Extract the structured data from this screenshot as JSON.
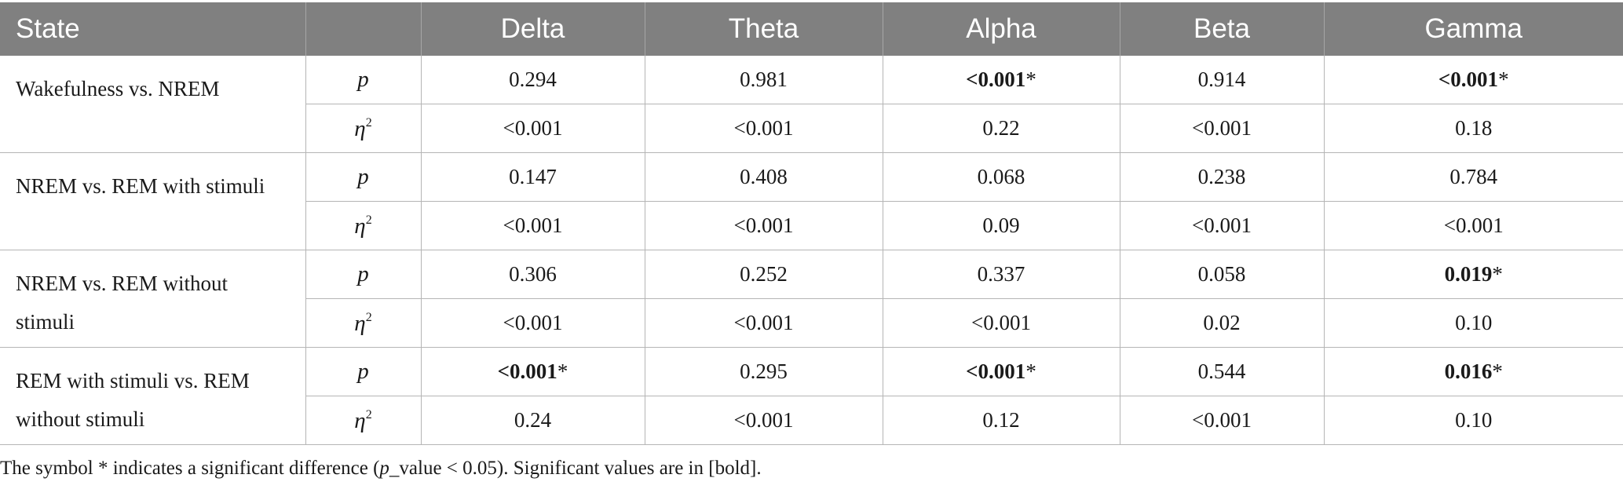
{
  "table": {
    "headers": [
      "State",
      "",
      "Delta",
      "Theta",
      "Alpha",
      "Beta",
      "Gamma"
    ],
    "groups": [
      {
        "state": "Wakefulness vs. NREM",
        "rows": [
          {
            "stat": "p",
            "sup": "",
            "values": [
              "0.294",
              "0.981",
              "<0.001",
              "0.914",
              "<0.001"
            ],
            "significant": [
              false,
              false,
              true,
              false,
              true
            ]
          },
          {
            "stat": "η",
            "sup": "2",
            "values": [
              "<0.001",
              "<0.001",
              "0.22",
              "<0.001",
              "0.18"
            ],
            "significant": [
              false,
              false,
              false,
              false,
              false
            ]
          }
        ]
      },
      {
        "state": "NREM vs. REM with stimuli",
        "rows": [
          {
            "stat": "p",
            "sup": "",
            "values": [
              "0.147",
              "0.408",
              "0.068",
              "0.238",
              "0.784"
            ],
            "significant": [
              false,
              false,
              false,
              false,
              false
            ]
          },
          {
            "stat": "η",
            "sup": "2",
            "values": [
              "<0.001",
              "<0.001",
              "0.09",
              "<0.001",
              "<0.001"
            ],
            "significant": [
              false,
              false,
              false,
              false,
              false
            ]
          }
        ]
      },
      {
        "state": "NREM vs. REM without stimuli",
        "rows": [
          {
            "stat": "p",
            "sup": "",
            "values": [
              "0.306",
              "0.252",
              "0.337",
              "0.058",
              "0.019"
            ],
            "significant": [
              false,
              false,
              false,
              false,
              true
            ]
          },
          {
            "stat": "η",
            "sup": "2",
            "values": [
              "<0.001",
              "<0.001",
              "<0.001",
              "0.02",
              "0.10"
            ],
            "significant": [
              false,
              false,
              false,
              false,
              false
            ]
          }
        ]
      },
      {
        "state": "REM with stimuli vs. REM without stimuli",
        "rows": [
          {
            "stat": "p",
            "sup": "",
            "values": [
              "<0.001",
              "0.295",
              "<0.001",
              "0.544",
              "0.016"
            ],
            "significant": [
              true,
              false,
              true,
              false,
              true
            ]
          },
          {
            "stat": "η",
            "sup": "2",
            "values": [
              "0.24",
              "<0.001",
              "0.12",
              "<0.001",
              "0.10"
            ],
            "significant": [
              false,
              false,
              false,
              false,
              false
            ]
          }
        ]
      }
    ],
    "significance_marker": "*"
  },
  "footnote": {
    "before": "The symbol * indicates a significant difference (",
    "italic": "p",
    "after": "_value < 0.05). Significant values are in [bold]."
  }
}
